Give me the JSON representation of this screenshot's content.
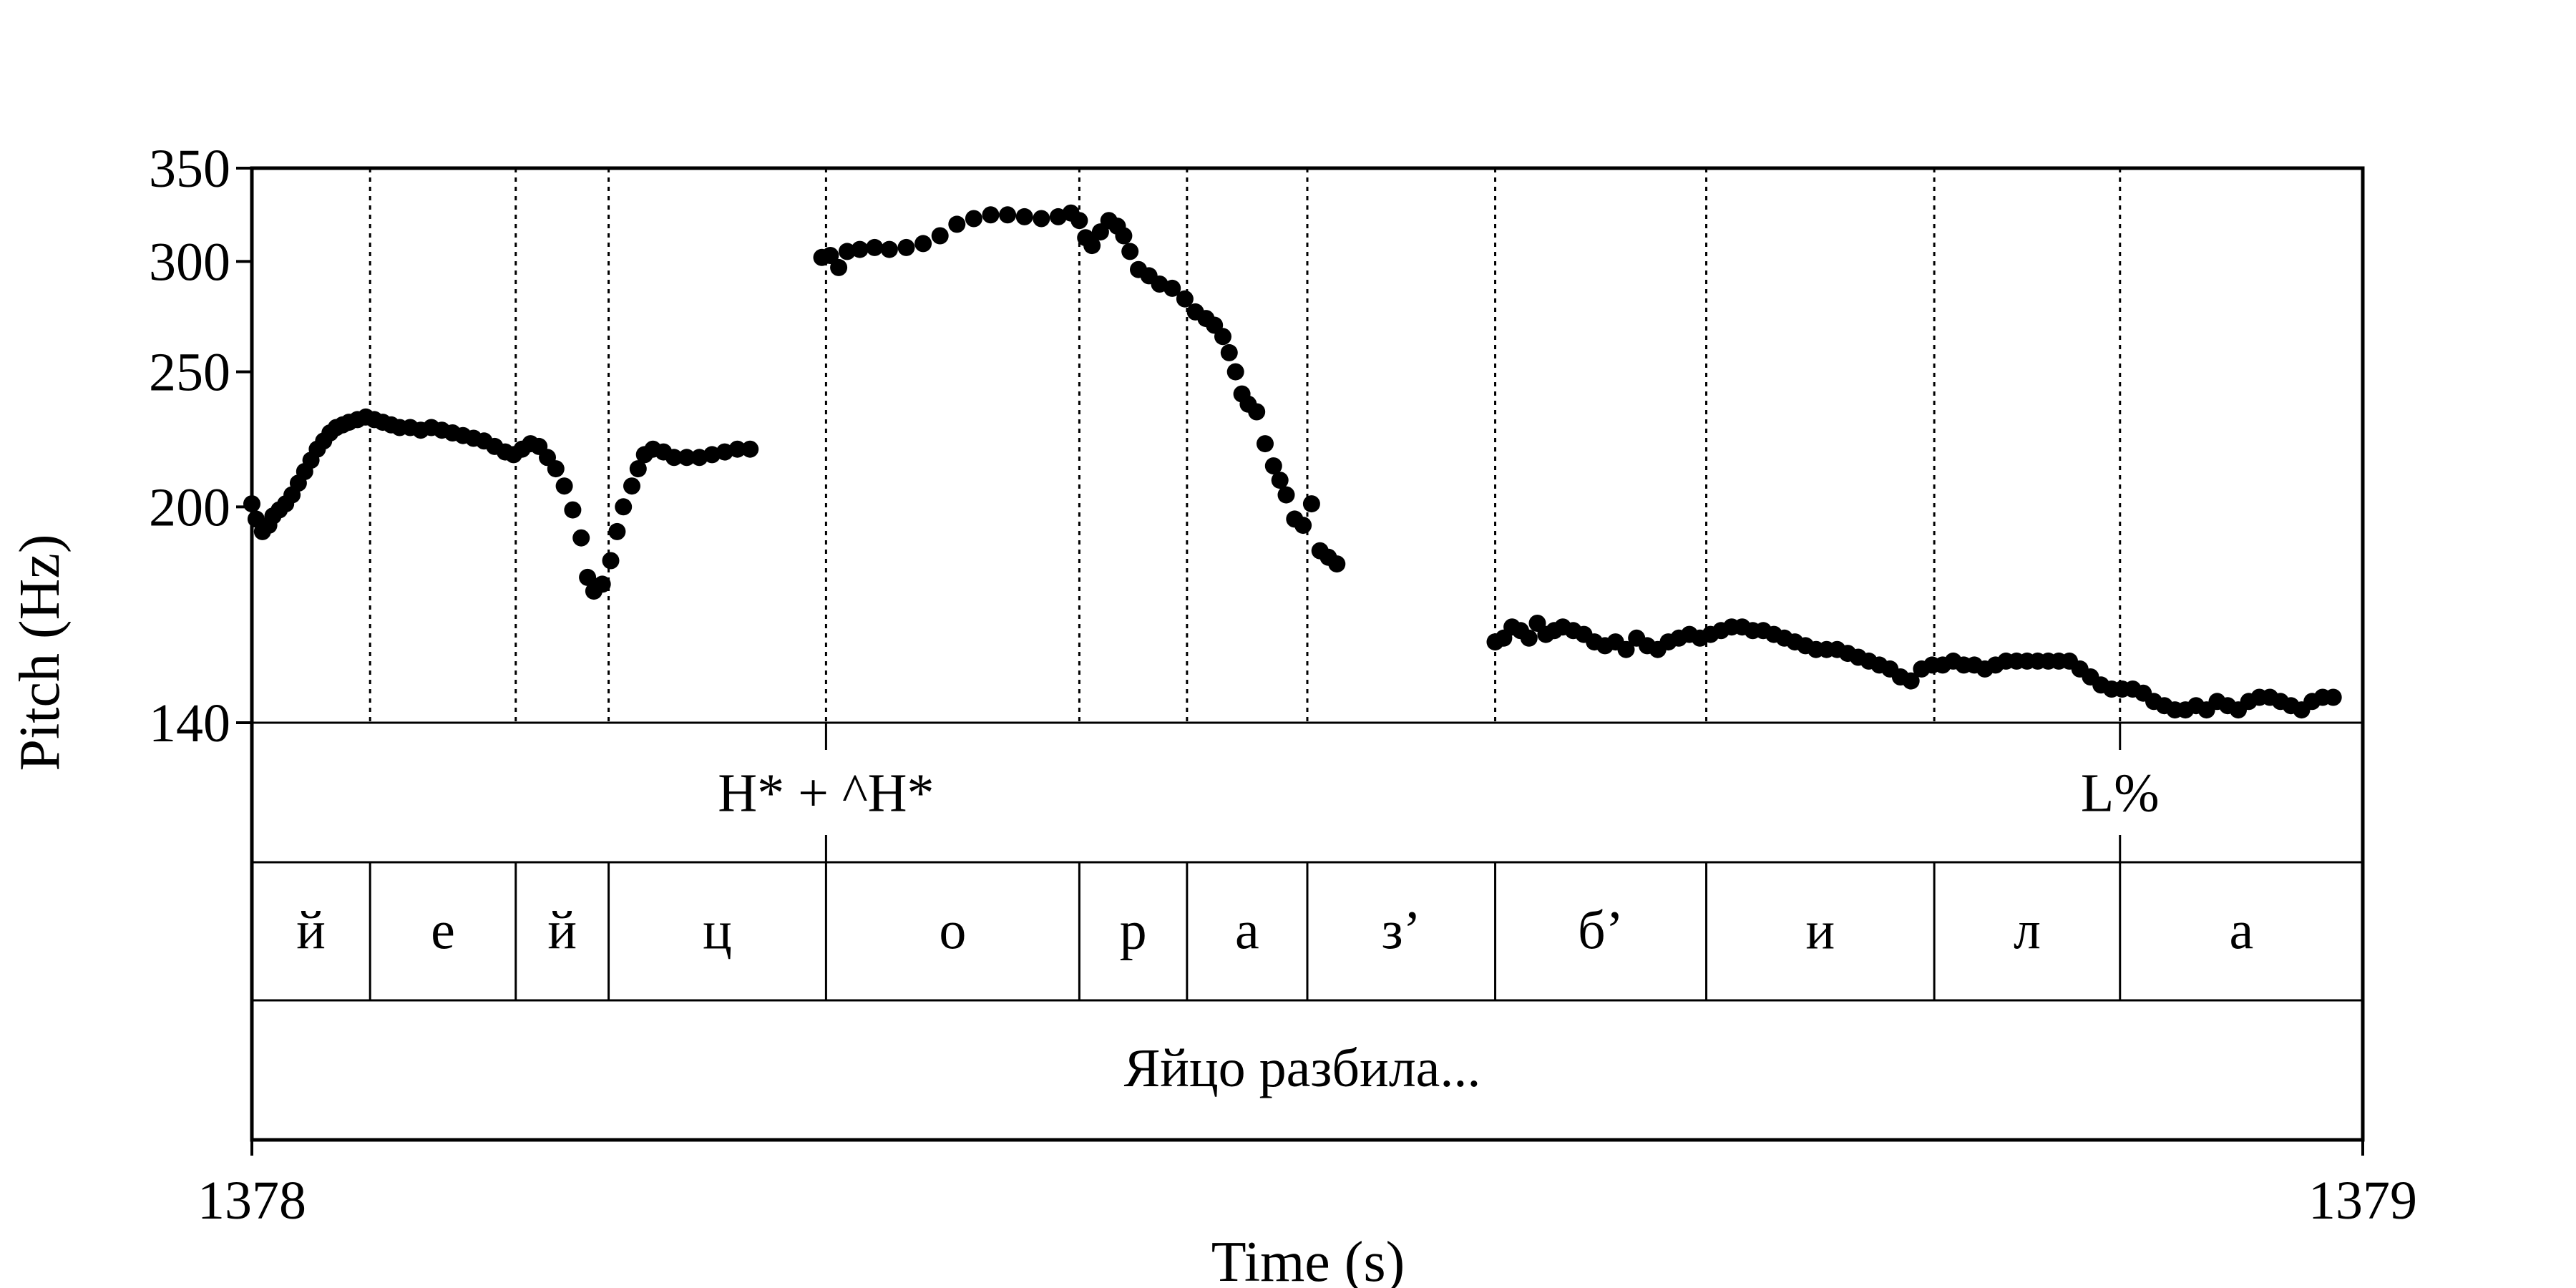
{
  "chart_data": {
    "type": "scatter",
    "xlabel": "Time (s)",
    "ylabel": "Pitch (Hz)",
    "xlim": [
      1378,
      1379
    ],
    "ylim": [
      140,
      350
    ],
    "y_scale": "log",
    "x_ticks": [
      "1378",
      "1379"
    ],
    "y_ticks": [
      140,
      200,
      250,
      300,
      350
    ],
    "y_tick_labels": [
      "140",
      "200",
      "250",
      "300",
      "350"
    ],
    "grid": false,
    "segment_boundaries": [
      1378.056,
      1378.125,
      1378.169,
      1378.272,
      1378.392,
      1378.443,
      1378.5,
      1378.589,
      1378.689,
      1378.797,
      1378.885
    ],
    "tone_tier": [
      {
        "time": 1378.272,
        "label": "H* + ^H*"
      },
      {
        "time": 1378.885,
        "label": "L%"
      }
    ],
    "segment_tier": [
      {
        "label": "й",
        "start": 1378.0,
        "end": 1378.056
      },
      {
        "label": "е",
        "start": 1378.056,
        "end": 1378.125
      },
      {
        "label": "й",
        "start": 1378.125,
        "end": 1378.169
      },
      {
        "label": "ц",
        "start": 1378.169,
        "end": 1378.272
      },
      {
        "label": "о",
        "start": 1378.272,
        "end": 1378.392
      },
      {
        "label": "р",
        "start": 1378.392,
        "end": 1378.443
      },
      {
        "label": "а",
        "start": 1378.443,
        "end": 1378.5
      },
      {
        "label": "з’",
        "start": 1378.5,
        "end": 1378.589
      },
      {
        "label": "б’",
        "start": 1378.589,
        "end": 1378.689
      },
      {
        "label": "и",
        "start": 1378.689,
        "end": 1378.797
      },
      {
        "label": "л",
        "start": 1378.797,
        "end": 1378.885
      },
      {
        "label": "а",
        "start": 1378.885,
        "end": 1379.0
      }
    ],
    "word_tier": "Яйцо разбила...",
    "series": [
      {
        "points": [
          [
            1378.0,
            201
          ],
          [
            1378.002,
            196
          ],
          [
            1378.005,
            192
          ],
          [
            1378.008,
            194
          ],
          [
            1378.01,
            197
          ],
          [
            1378.013,
            199
          ],
          [
            1378.016,
            201
          ],
          [
            1378.019,
            204
          ],
          [
            1378.022,
            208
          ],
          [
            1378.025,
            212
          ],
          [
            1378.028,
            216
          ],
          [
            1378.031,
            220
          ],
          [
            1378.034,
            223
          ],
          [
            1378.037,
            226
          ],
          [
            1378.04,
            228
          ],
          [
            1378.043,
            229
          ],
          [
            1378.046,
            230
          ],
          [
            1378.05,
            231
          ],
          [
            1378.054,
            232
          ],
          [
            1378.058,
            231
          ],
          [
            1378.062,
            230
          ],
          [
            1378.066,
            229
          ],
          [
            1378.07,
            228
          ],
          [
            1378.075,
            228
          ],
          [
            1378.08,
            227
          ],
          [
            1378.085,
            228
          ],
          [
            1378.09,
            227
          ],
          [
            1378.095,
            226
          ],
          [
            1378.1,
            225
          ],
          [
            1378.105,
            224
          ],
          [
            1378.11,
            223
          ],
          [
            1378.115,
            221
          ],
          [
            1378.12,
            219
          ],
          [
            1378.124,
            218
          ],
          [
            1378.128,
            220
          ],
          [
            1378.132,
            222
          ],
          [
            1378.136,
            221
          ],
          [
            1378.14,
            217
          ],
          [
            1378.144,
            213
          ],
          [
            1378.148,
            207
          ],
          [
            1378.152,
            199
          ],
          [
            1378.156,
            190
          ],
          [
            1378.159,
            178
          ],
          [
            1378.162,
            174
          ],
          [
            1378.166,
            176
          ],
          [
            1378.17,
            183
          ],
          [
            1378.173,
            192
          ],
          [
            1378.176,
            200
          ],
          [
            1378.18,
            207
          ],
          [
            1378.183,
            213
          ],
          [
            1378.186,
            218
          ],
          [
            1378.19,
            220
          ],
          [
            1378.195,
            219
          ],
          [
            1378.2,
            217
          ],
          [
            1378.206,
            217
          ],
          [
            1378.212,
            217
          ],
          [
            1378.218,
            218
          ],
          [
            1378.224,
            219
          ],
          [
            1378.23,
            220
          ],
          [
            1378.236,
            220
          ]
        ]
      },
      {
        "points": [
          [
            1378.27,
            302
          ],
          [
            1378.274,
            303
          ],
          [
            1378.278,
            297
          ],
          [
            1378.282,
            305
          ],
          [
            1378.288,
            306
          ],
          [
            1378.295,
            307
          ],
          [
            1378.302,
            306
          ],
          [
            1378.31,
            307
          ],
          [
            1378.318,
            309
          ],
          [
            1378.326,
            313
          ],
          [
            1378.334,
            319
          ],
          [
            1378.342,
            322
          ],
          [
            1378.35,
            324
          ],
          [
            1378.358,
            324
          ],
          [
            1378.366,
            323
          ],
          [
            1378.374,
            322
          ],
          [
            1378.382,
            323
          ],
          [
            1378.388,
            325
          ],
          [
            1378.392,
            321
          ],
          [
            1378.395,
            312
          ],
          [
            1378.398,
            308
          ],
          [
            1378.402,
            315
          ],
          [
            1378.406,
            321
          ],
          [
            1378.41,
            318
          ],
          [
            1378.413,
            313
          ],
          [
            1378.416,
            305
          ],
          [
            1378.42,
            296
          ],
          [
            1378.425,
            293
          ],
          [
            1378.43,
            289
          ],
          [
            1378.436,
            287
          ],
          [
            1378.442,
            282
          ],
          [
            1378.447,
            276
          ],
          [
            1378.452,
            273
          ],
          [
            1378.456,
            270
          ],
          [
            1378.46,
            265
          ],
          [
            1378.463,
            258
          ],
          [
            1378.466,
            250
          ],
          [
            1378.469,
            241
          ],
          [
            1378.472,
            237
          ],
          [
            1378.476,
            234
          ],
          [
            1378.48,
            222
          ],
          [
            1378.484,
            214
          ],
          [
            1378.487,
            209
          ],
          [
            1378.49,
            204
          ],
          [
            1378.494,
            196
          ],
          [
            1378.498,
            194
          ],
          [
            1378.502,
            201
          ],
          [
            1378.506,
            186
          ],
          [
            1378.51,
            184
          ],
          [
            1378.514,
            182
          ]
        ]
      },
      {
        "points": [
          [
            1378.589,
            160
          ],
          [
            1378.593,
            161
          ],
          [
            1378.597,
            164
          ],
          [
            1378.601,
            163
          ],
          [
            1378.605,
            161
          ],
          [
            1378.609,
            165
          ],
          [
            1378.613,
            162
          ],
          [
            1378.617,
            163
          ],
          [
            1378.621,
            164
          ],
          [
            1378.626,
            163
          ],
          [
            1378.631,
            162
          ],
          [
            1378.636,
            160
          ],
          [
            1378.641,
            159
          ],
          [
            1378.646,
            160
          ],
          [
            1378.651,
            158
          ],
          [
            1378.656,
            161
          ],
          [
            1378.661,
            159
          ],
          [
            1378.666,
            158
          ],
          [
            1378.671,
            160
          ],
          [
            1378.676,
            161
          ],
          [
            1378.681,
            162
          ],
          [
            1378.686,
            161
          ],
          [
            1378.691,
            162
          ],
          [
            1378.696,
            163
          ],
          [
            1378.701,
            164
          ],
          [
            1378.706,
            164
          ],
          [
            1378.711,
            163
          ],
          [
            1378.716,
            163
          ],
          [
            1378.721,
            162
          ],
          [
            1378.726,
            161
          ],
          [
            1378.731,
            160
          ],
          [
            1378.736,
            159
          ],
          [
            1378.741,
            158
          ],
          [
            1378.746,
            158
          ],
          [
            1378.751,
            158
          ],
          [
            1378.756,
            157
          ],
          [
            1378.761,
            156
          ],
          [
            1378.766,
            155
          ],
          [
            1378.771,
            154
          ],
          [
            1378.776,
            153
          ],
          [
            1378.781,
            151
          ],
          [
            1378.786,
            150
          ],
          [
            1378.791,
            153
          ],
          [
            1378.796,
            154
          ],
          [
            1378.801,
            154
          ],
          [
            1378.806,
            155
          ],
          [
            1378.811,
            154
          ],
          [
            1378.816,
            154
          ],
          [
            1378.821,
            153
          ],
          [
            1378.826,
            154
          ],
          [
            1378.831,
            155
          ],
          [
            1378.836,
            155
          ],
          [
            1378.841,
            155
          ],
          [
            1378.846,
            155
          ],
          [
            1378.851,
            155
          ],
          [
            1378.856,
            155
          ],
          [
            1378.861,
            155
          ],
          [
            1378.866,
            153
          ],
          [
            1378.871,
            151
          ],
          [
            1378.876,
            149
          ],
          [
            1378.881,
            148
          ],
          [
            1378.886,
            148
          ],
          [
            1378.891,
            148
          ],
          [
            1378.896,
            147
          ],
          [
            1378.901,
            145
          ],
          [
            1378.906,
            144
          ],
          [
            1378.911,
            143
          ],
          [
            1378.916,
            143
          ],
          [
            1378.921,
            144
          ],
          [
            1378.926,
            143
          ],
          [
            1378.931,
            145
          ],
          [
            1378.936,
            144
          ],
          [
            1378.941,
            143
          ],
          [
            1378.946,
            145
          ],
          [
            1378.951,
            146
          ],
          [
            1378.956,
            146
          ],
          [
            1378.961,
            145
          ],
          [
            1378.966,
            144
          ],
          [
            1378.971,
            143
          ],
          [
            1378.976,
            145
          ],
          [
            1378.981,
            146
          ],
          [
            1378.986,
            146
          ]
        ]
      }
    ]
  }
}
